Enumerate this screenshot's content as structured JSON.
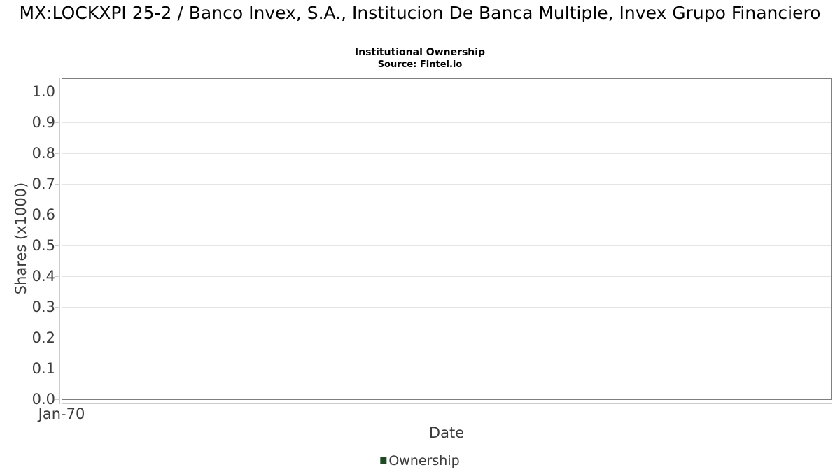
{
  "chart_data": {
    "type": "line",
    "title": "MX:LOCKXPI 25-2 / Banco Invex, S.A., Institucion De Banca Multiple, Invex Grupo Financiero",
    "subtitle": "Institutional Ownership",
    "source": "Source: Fintel.io",
    "xlabel": "Date",
    "ylabel": "Shares (x1000)",
    "x_tick_labels": [
      "Jan-70"
    ],
    "y_tick_labels": [
      "0.0",
      "0.1",
      "0.2",
      "0.3",
      "0.4",
      "0.5",
      "0.6",
      "0.7",
      "0.8",
      "0.9",
      "1.0"
    ],
    "ylim": [
      0.0,
      1.043
    ],
    "grid": true,
    "legend_position": "bottom",
    "series": [
      {
        "name": "Ownership",
        "color": "#1e4a24",
        "x": [],
        "values": []
      }
    ]
  },
  "colors": {
    "background": "#ffffff",
    "plot_border": "#7f7f7f",
    "gridline": "#e4e4e4",
    "axis_line": "#cccccc",
    "tick_text": "#3c3c3c",
    "title_text": "#000000",
    "legend_marker": "#1e4a24"
  }
}
